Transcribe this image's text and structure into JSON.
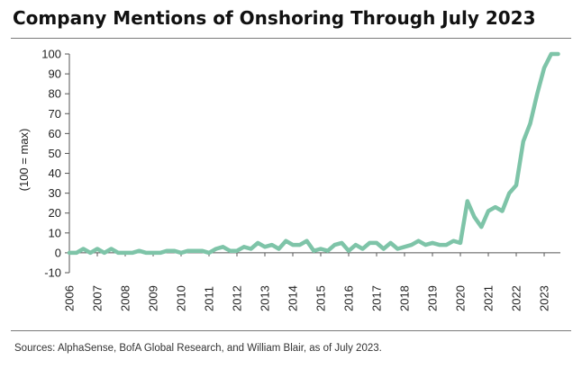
{
  "header": {
    "title": "Company Mentions of Onshoring Through July 2023"
  },
  "footer": {
    "source": "Sources: AlphaSense, BofA Global Research, and William Blair, as of July 2023."
  },
  "colors": {
    "series": "#7ec4a8",
    "axis": "#555555",
    "text": "#222222"
  },
  "chart_data": {
    "type": "line",
    "title": "Company Mentions of Onshoring Through July 2023",
    "xlabel": "",
    "ylabel": "(100 = max)",
    "ylim": [
      -10,
      100
    ],
    "yticks": [
      -10,
      0,
      10,
      20,
      30,
      40,
      50,
      60,
      70,
      80,
      90,
      100
    ],
    "xlim": [
      2006,
      2023.58
    ],
    "xticks": [
      2006,
      2007,
      2008,
      2009,
      2010,
      2011,
      2012,
      2013,
      2014,
      2015,
      2016,
      2017,
      2018,
      2019,
      2020,
      2021,
      2022,
      2023
    ],
    "grid": false,
    "legend": "none",
    "series": [
      {
        "x": [
          2006.0,
          2006.25,
          2006.5,
          2006.75,
          2007.0,
          2007.25,
          2007.5,
          2007.75,
          2008.0,
          2008.25,
          2008.5,
          2008.75,
          2009.0,
          2009.25,
          2009.5,
          2009.75,
          2010.0,
          2010.25,
          2010.5,
          2010.75,
          2011.0,
          2011.25,
          2011.5,
          2011.75,
          2012.0,
          2012.25,
          2012.5,
          2012.75,
          2013.0,
          2013.25,
          2013.5,
          2013.75,
          2014.0,
          2014.25,
          2014.5,
          2014.75,
          2015.0,
          2015.25,
          2015.5,
          2015.75,
          2016.0,
          2016.25,
          2016.5,
          2016.75,
          2017.0,
          2017.25,
          2017.5,
          2017.75,
          2018.0,
          2018.25,
          2018.5,
          2018.75,
          2019.0,
          2019.25,
          2019.5,
          2019.75,
          2020.0,
          2020.25,
          2020.5,
          2020.75,
          2021.0,
          2021.25,
          2021.5,
          2021.75,
          2022.0,
          2022.25,
          2022.5,
          2022.75,
          2023.0,
          2023.25,
          2023.5
        ],
        "values": [
          0,
          0,
          2,
          0,
          2,
          0,
          2,
          0,
          0,
          0,
          1,
          0,
          0,
          0,
          1,
          1,
          0,
          1,
          1,
          1,
          0,
          2,
          3,
          1,
          1,
          3,
          2,
          5,
          3,
          4,
          2,
          6,
          4,
          4,
          6,
          1,
          2,
          1,
          4,
          5,
          1,
          4,
          2,
          5,
          5,
          2,
          5,
          2,
          3,
          4,
          6,
          4,
          5,
          4,
          4,
          6,
          5,
          26,
          18,
          13,
          21,
          23,
          21,
          30,
          34,
          56,
          65,
          80,
          93,
          100,
          100
        ]
      }
    ]
  }
}
